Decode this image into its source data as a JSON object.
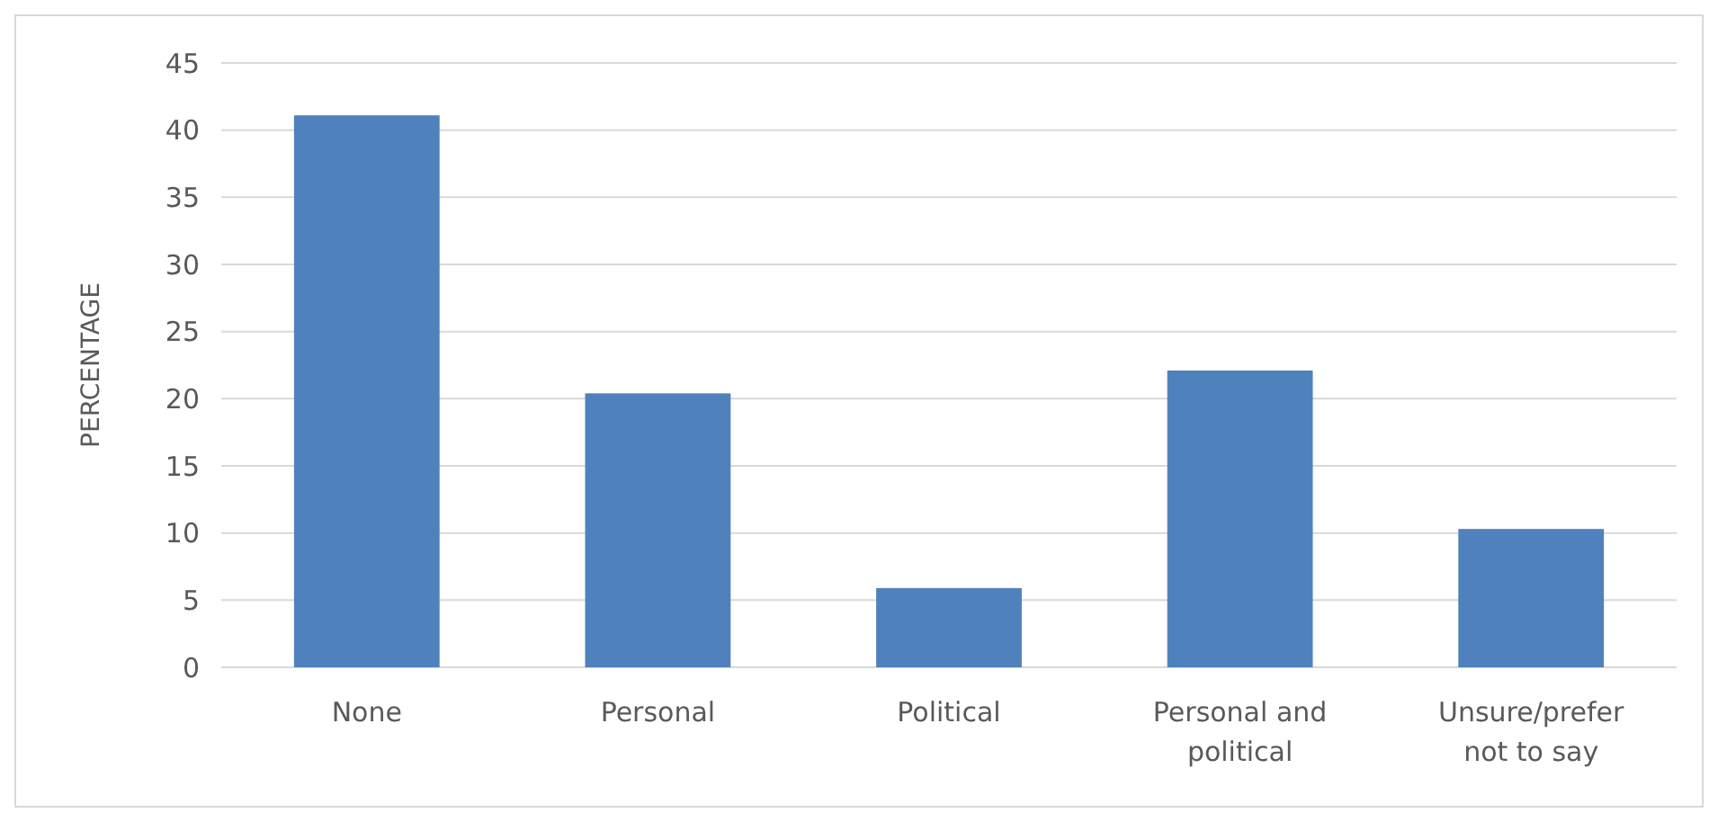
{
  "chart_data": {
    "type": "bar",
    "ylabel": "PERCENTAGE",
    "categories": [
      "None",
      "Personal",
      "Political",
      "Personal and political",
      "Unsure/prefer not to say"
    ],
    "values": [
      41.1,
      20.4,
      5.9,
      22.1,
      10.3
    ],
    "color": "#4f81bd",
    "ylim": [
      0,
      45
    ],
    "yticks": [
      0,
      5,
      10,
      15,
      20,
      25,
      30,
      35,
      40,
      45
    ],
    "grid": "y"
  }
}
